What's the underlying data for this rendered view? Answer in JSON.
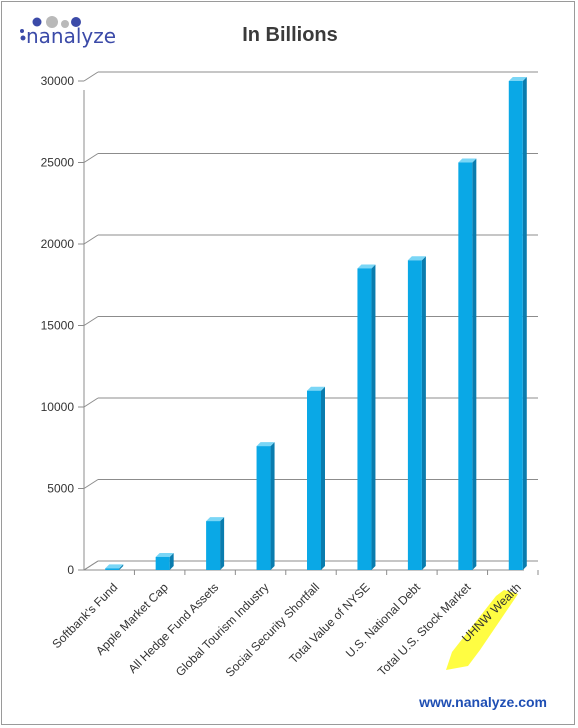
{
  "brand": {
    "name": "nanalyze",
    "website": "www.nanalyze.com"
  },
  "colors": {
    "bar_front": "#0aa8e6",
    "bar_side": "#0a7cae",
    "bar_top": "#7ad6f6",
    "grid": "#8c8c8c",
    "title": "#3b3b3b",
    "highlight": "#fffd38",
    "logo_dark": "#3b4aa8",
    "logo_grey": "#b9b9b9",
    "website": "#1f4fb4"
  },
  "chart_data": {
    "type": "bar",
    "title": "In Billions",
    "xlabel": "",
    "ylabel": "",
    "categories": [
      "Softbank's Fund",
      "Apple Market Cap",
      "All Hedge Fund Assets",
      "Global Tourism Industry",
      "Social Security Shortfall",
      "Total Value of NYSE",
      "U.S. National Debt",
      "Total U.S. Stock Market",
      "UHNW Wealth"
    ],
    "values": [
      100,
      800,
      3000,
      7600,
      11000,
      18500,
      19000,
      25000,
      30000
    ],
    "highlighted_category": "UHNW Wealth",
    "ylim": [
      0,
      30000
    ],
    "yticks": [
      0,
      5000,
      10000,
      15000,
      20000,
      25000,
      30000
    ],
    "grid": true,
    "legend": "none"
  }
}
